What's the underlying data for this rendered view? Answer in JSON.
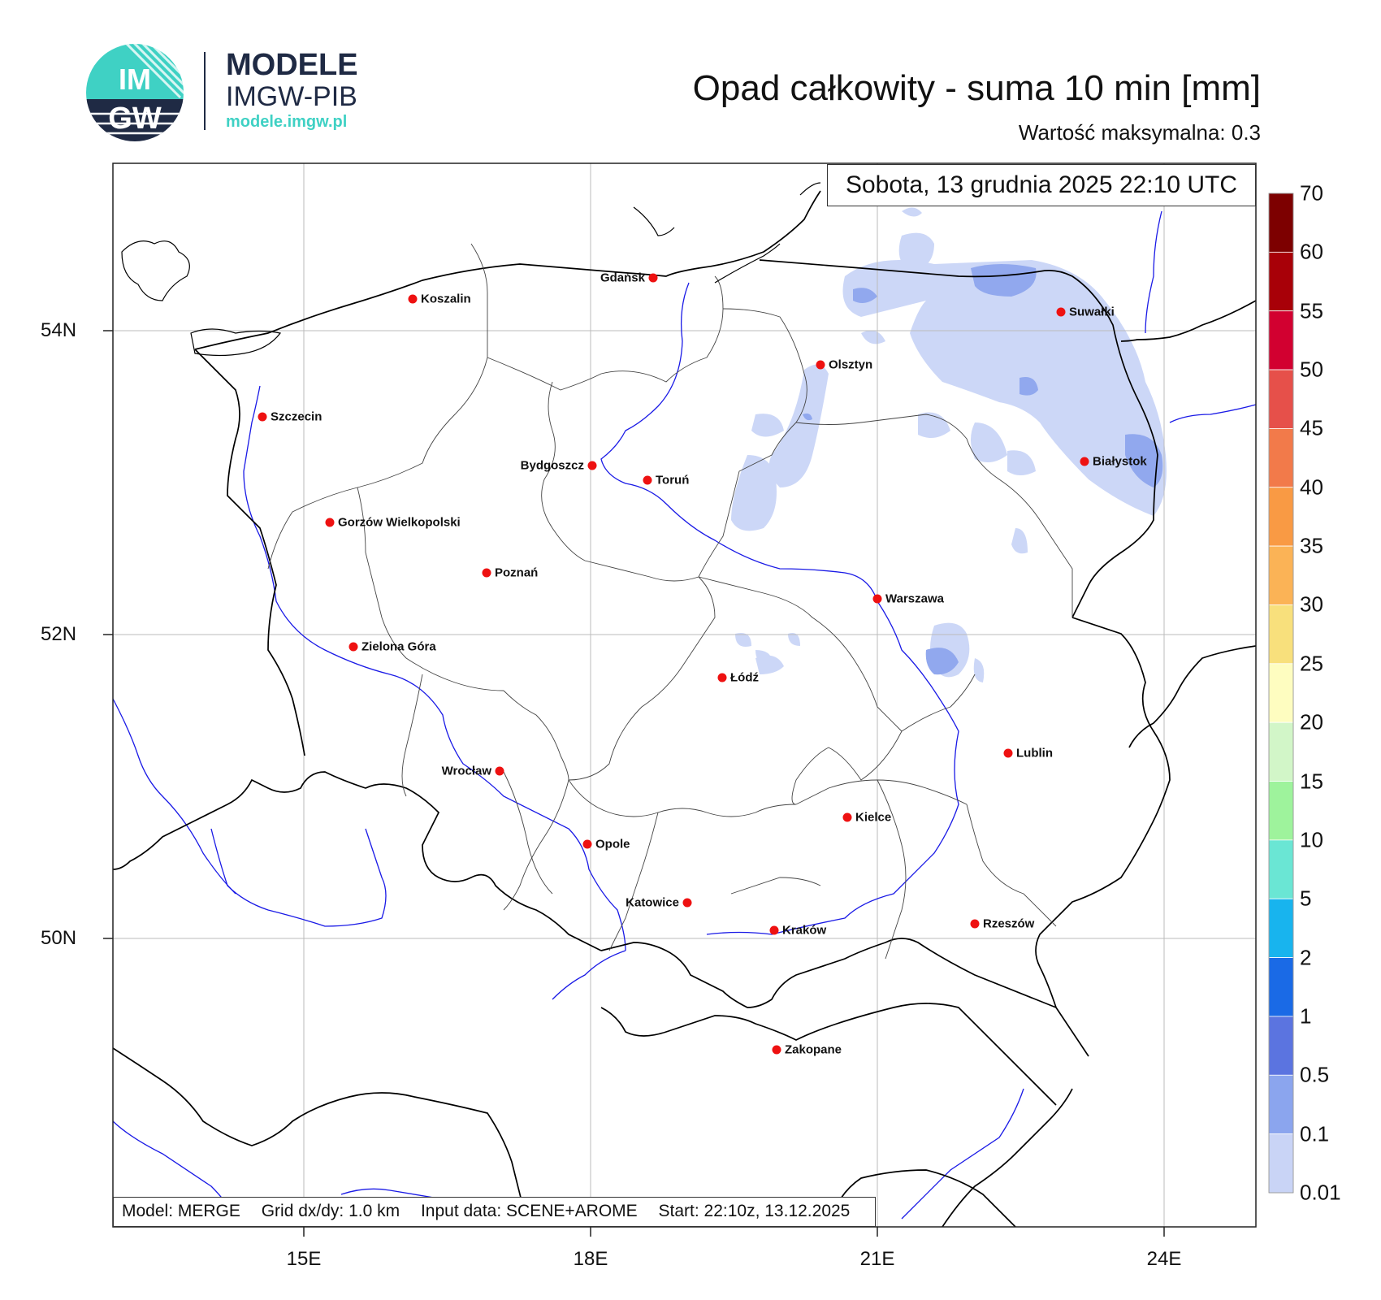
{
  "logo": {
    "brand_main": "MODELE",
    "brand_sub": "IMGW-PIB",
    "url": "modele.imgw.pl",
    "emblem_top": "IM",
    "emblem_bottom": "GW",
    "colors": {
      "navy": "#1f2a44",
      "teal": "#3fd1c4"
    }
  },
  "title": "Opad całkowity - suma 10 min [mm]",
  "subtitle": "Wartość maksymalna:  0.3",
  "date": "Sobota, 13 grudnia 2025 22:10 UTC",
  "info": {
    "model": "Model: MERGE",
    "grid": "Grid dx/dy: 1.0 km",
    "input": "Input data: SCENE+AROME",
    "start": "Start: 22:10z, 13.12.2025"
  },
  "axes": {
    "lon_labels": [
      "15E",
      "18E",
      "21E",
      "24E"
    ],
    "lat_labels": [
      "54N",
      "52N",
      "50N"
    ]
  },
  "cities": [
    {
      "name": "Gdańsk",
      "label_side": "left"
    },
    {
      "name": "Koszalin",
      "label_side": "right"
    },
    {
      "name": "Szczecin",
      "label_side": "right"
    },
    {
      "name": "Olsztyn",
      "label_side": "right"
    },
    {
      "name": "Suwałki",
      "label_side": "right"
    },
    {
      "name": "Białystok",
      "label_side": "right"
    },
    {
      "name": "Bydgoszcz",
      "label_side": "left"
    },
    {
      "name": "Toruń",
      "label_side": "right"
    },
    {
      "name": "Gorzów Wielkopolski",
      "label_side": "right"
    },
    {
      "name": "Poznań",
      "label_side": "right"
    },
    {
      "name": "Warszawa",
      "label_side": "right"
    },
    {
      "name": "Zielona Góra",
      "label_side": "right"
    },
    {
      "name": "Łódź",
      "label_side": "right"
    },
    {
      "name": "Lublin",
      "label_side": "right"
    },
    {
      "name": "Wrocław",
      "label_side": "left"
    },
    {
      "name": "Kielce",
      "label_side": "right"
    },
    {
      "name": "Opole",
      "label_side": "right"
    },
    {
      "name": "Katowice",
      "label_side": "left"
    },
    {
      "name": "Kraków",
      "label_side": "right"
    },
    {
      "name": "Rzeszów",
      "label_side": "right"
    },
    {
      "name": "Zakopane",
      "label_side": "right"
    }
  ],
  "legend": {
    "labels": [
      "70",
      "60",
      "55",
      "50",
      "45",
      "40",
      "35",
      "30",
      "25",
      "20",
      "15",
      "10",
      "5",
      "2",
      "1",
      "0.5",
      "0.1",
      "0.01"
    ],
    "colors": [
      "#7d0000",
      "#a80008",
      "#d20030",
      "#e6504a",
      "#f27a4a",
      "#f99a44",
      "#fbb356",
      "#f8e07c",
      "#fefdc0",
      "#d2f6c8",
      "#9ef39c",
      "#6ae6d4",
      "#18b4ee",
      "#1a6ae6",
      "#5b74e0",
      "#8ba5ee",
      "#c9d4f6"
    ]
  },
  "colors": {
    "precip_light": "#ccd7f7",
    "precip_mid": "#91a8ee",
    "border": "#000000",
    "river": "#1a1ae6",
    "grid": "#bbbbbb",
    "city_dot": "#ee1111"
  }
}
